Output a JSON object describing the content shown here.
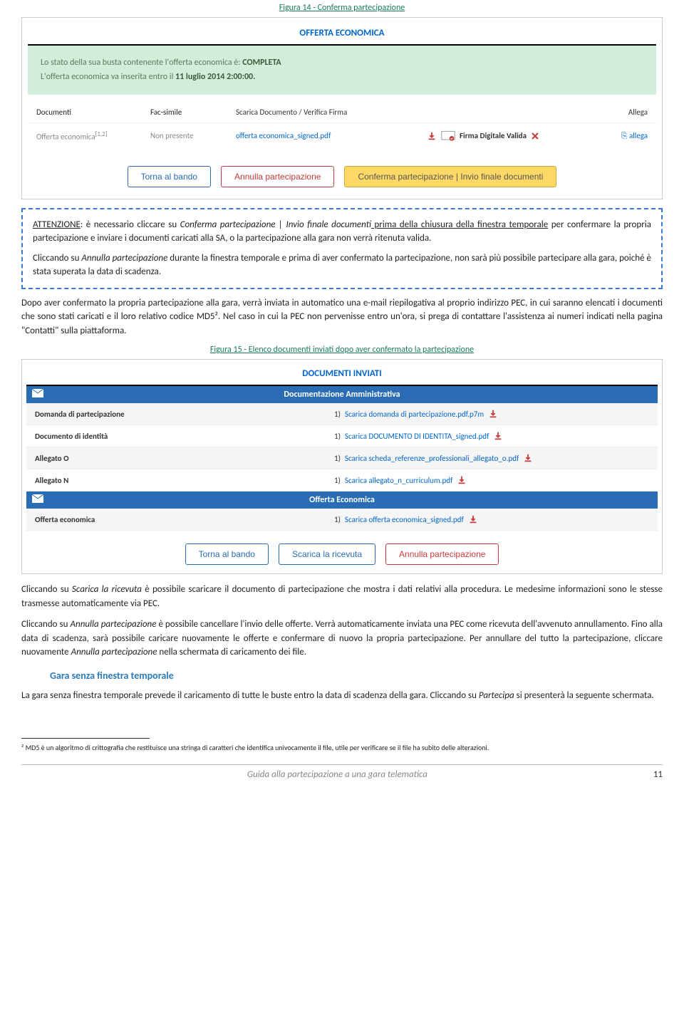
{
  "caption1": "Figura 14 - Conferma partecipazione",
  "panel1": {
    "title": "OFFERTA ECONOMICA",
    "status_line1_pre": "Lo stato della sua busta contenente l'offerta economica è: ",
    "status_line1_bold": "COMPLETA",
    "status_line2_pre": "L'offerta economica va inserita entro il ",
    "status_line2_bold": "11 luglio 2014 2:00:00.",
    "headers": {
      "c1": "Documenti",
      "c2": "Fac-simile",
      "c3": "Scarica Documento / Verifica Firma",
      "c5": "Allega"
    },
    "row": {
      "c1": "Offerta economica",
      "c1_sup": "[1,2]",
      "c2": "Non presente",
      "c3": "offerta economica_signed.pdf",
      "c4": "Firma Digitale Valida",
      "c5": "allega",
      "c5_icon": "⎘"
    },
    "buttons": {
      "b1": "Torna al bando",
      "b2": "Annulla partecipazione",
      "b3": "Conferma partecipazione | Invio finale documenti"
    }
  },
  "attention": {
    "label": "ATTENZIONE",
    "t1": ": è necessario cliccare su ",
    "i1": "Conferma partecipazione | Invio finale documenti",
    "t2": " prima della chiusura della finestra temporale per confermare la propria partecipazione e inviare i documenti caricati alla SA, o la partecipazione alla gara non verrà ritenuta valida.",
    "t3": "Cliccando su ",
    "i2": "Annulla partecipazione",
    "t4": " durante la finestra temporale e prima di aver confermato la partecipazione, non sarà più possibile partecipare alla gara, poiché è stata superata la data di scadenza."
  },
  "para1": "Dopo aver confermato la propria partecipazione alla gara, verrà inviata in automatico una e-mail riepilogativa al proprio indirizzo PEC, in cui saranno elencati i documenti che sono stati caricati e il loro relativo codice MD5². Nel caso in cui la PEC non pervenisse entro un'ora, si prega di contattare l'assistenza ai numeri indicati nella pagina \"Contatti\" sulla piattaforma.",
  "caption2": "Figura 15 - Elenco documenti inviati dopo aver confermato la partecipazione",
  "panel2": {
    "title": "DOCUMENTI INVIATI",
    "sect1": "Documentazione Amministrativa",
    "rows1": [
      {
        "label": "Domanda di partecipazione",
        "num": "1)",
        "link": "Scarica domanda di partecipazione.pdf.p7m"
      },
      {
        "label": "Documento di identità",
        "num": "1)",
        "link": "Scarica DOCUMENTO DI IDENTITA_signed.pdf"
      },
      {
        "label": "Allegato O",
        "num": "1)",
        "link": "Scarica scheda_referenze_professionali_allegato_o.pdf"
      },
      {
        "label": "Allegato N",
        "num": "1)",
        "link": "Scarica allegato_n_curriculum.pdf"
      }
    ],
    "sect2": "Offerta Economica",
    "rows2": [
      {
        "label": "Offerta economica",
        "num": "1)",
        "link": "Scarica offerta economica_signed.pdf"
      }
    ],
    "buttons": {
      "b1": "Torna al bando",
      "b2": "Scarica la ricevuta",
      "b3": "Annulla partecipazione"
    }
  },
  "para2_t1": "Cliccando su ",
  "para2_i1": "Scarica la ricevuta",
  "para2_t2": " è possibile scaricare il documento di partecipazione che mostra i dati relativi alla procedura. Le medesime informazioni sono le stesse trasmesse automaticamente via PEC.",
  "para3_t1": "Cliccando su ",
  "para3_i1": "Annulla partecipazione",
  "para3_t2": " è possibile cancellare l'invio delle offerte. Verrà automaticamente inviata una PEC come ricevuta dell'avvenuto annullamento. Fino alla data di scadenza, sarà possibile caricare nuovamente le offerte e confermare di nuovo la propria partecipazione. Per annullare del tutto la partecipazione, cliccare nuovamente ",
  "para3_i2": "Annulla partecipazione",
  "para3_t3": " nella schermata di caricamento dei file.",
  "subheading": "Gara senza finestra temporale",
  "para4_t1": "La gara senza finestra temporale prevede il caricamento di tutte le buste entro la data di scadenza della gara. Cliccando su ",
  "para4_i1": "Partecipa",
  "para4_t2": " si presenterà la seguente schermata.",
  "footnote": "² MD5 è un algoritmo di crittografia che restituisce una stringa di caratteri che identifica univocamente il file, utile per verificare se il file ha subito delle alterazioni.",
  "footer": {
    "title": "Guida alla partecipazione a una gara telematica",
    "page": "11"
  },
  "colors": {
    "caption": "#1a7a5e",
    "link": "#0066cc",
    "bar": "#2a6db5",
    "green_bg": "#d4edda",
    "yellow_btn": "#ffd966",
    "red_btn": "#c73a3a"
  }
}
